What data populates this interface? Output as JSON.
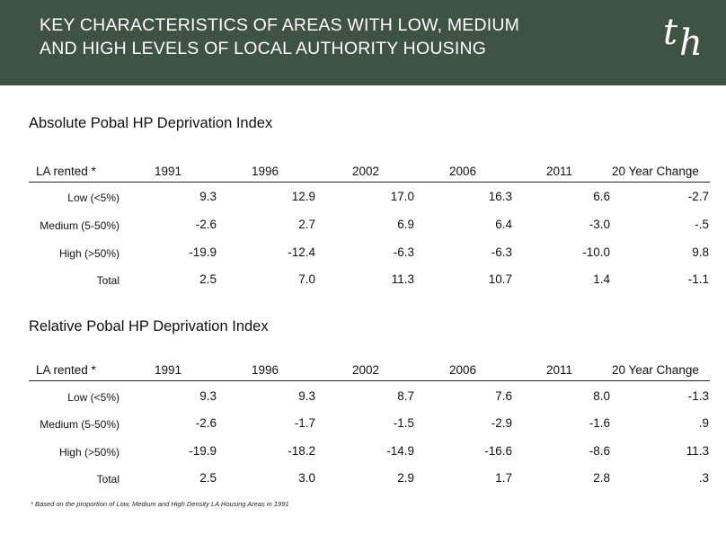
{
  "header": {
    "title_line1": "KEY CHARACTERISTICS OF AREAS WITH LOW, MEDIUM",
    "title_line2": "AND HIGH LEVELS OF LOCAL AUTHORITY HOUSING",
    "logo_char1": "t",
    "logo_char2": "h"
  },
  "absolute": {
    "title": "Absolute Pobal HP Deprivation Index",
    "columns": [
      "LA rented *",
      "1991",
      "1996",
      "2002",
      "2006",
      "2011",
      "20 Year  Change"
    ],
    "rows": [
      {
        "label": "Low (<5%)",
        "values": [
          "9.3",
          "12.9",
          "17.0",
          "16.3",
          "6.6",
          "-2.7"
        ]
      },
      {
        "label": "Medium (5-50%)",
        "values": [
          "-2.6",
          "2.7",
          "6.9",
          "6.4",
          "-3.0",
          "-.5"
        ]
      },
      {
        "label": "High (>50%)",
        "values": [
          "-19.9",
          "-12.4",
          "-6.3",
          "-6.3",
          "-10.0",
          "9.8"
        ]
      },
      {
        "label": "Total",
        "values": [
          "2.5",
          "7.0",
          "11.3",
          "10.7",
          "1.4",
          "-1.1"
        ]
      }
    ]
  },
  "relative": {
    "title": "Relative Pobal HP Deprivation Index",
    "columns": [
      "LA rented *",
      "1991",
      "1996",
      "2002",
      "2006",
      "2011",
      "20 Year  Change"
    ],
    "rows": [
      {
        "label": "Low (<5%)",
        "values": [
          "9.3",
          "9.3",
          "8.7",
          "7.6",
          "8.0",
          "-1.3"
        ]
      },
      {
        "label": "Medium (5-50%)",
        "values": [
          "-2.6",
          "-1.7",
          "-1.5",
          "-2.9",
          "-1.6",
          ".9"
        ]
      },
      {
        "label": "High (>50%)",
        "values": [
          "-19.9",
          "-18.2",
          "-14.9",
          "-16.6",
          "-8.6",
          "11.3"
        ]
      },
      {
        "label": "Total",
        "values": [
          "2.5",
          "3.0",
          "2.9",
          "1.7",
          "2.8",
          ".3"
        ]
      }
    ]
  },
  "footnote": "* Based on the proportion of Low, Medium and High Density LA Housing Areas in 1991"
}
